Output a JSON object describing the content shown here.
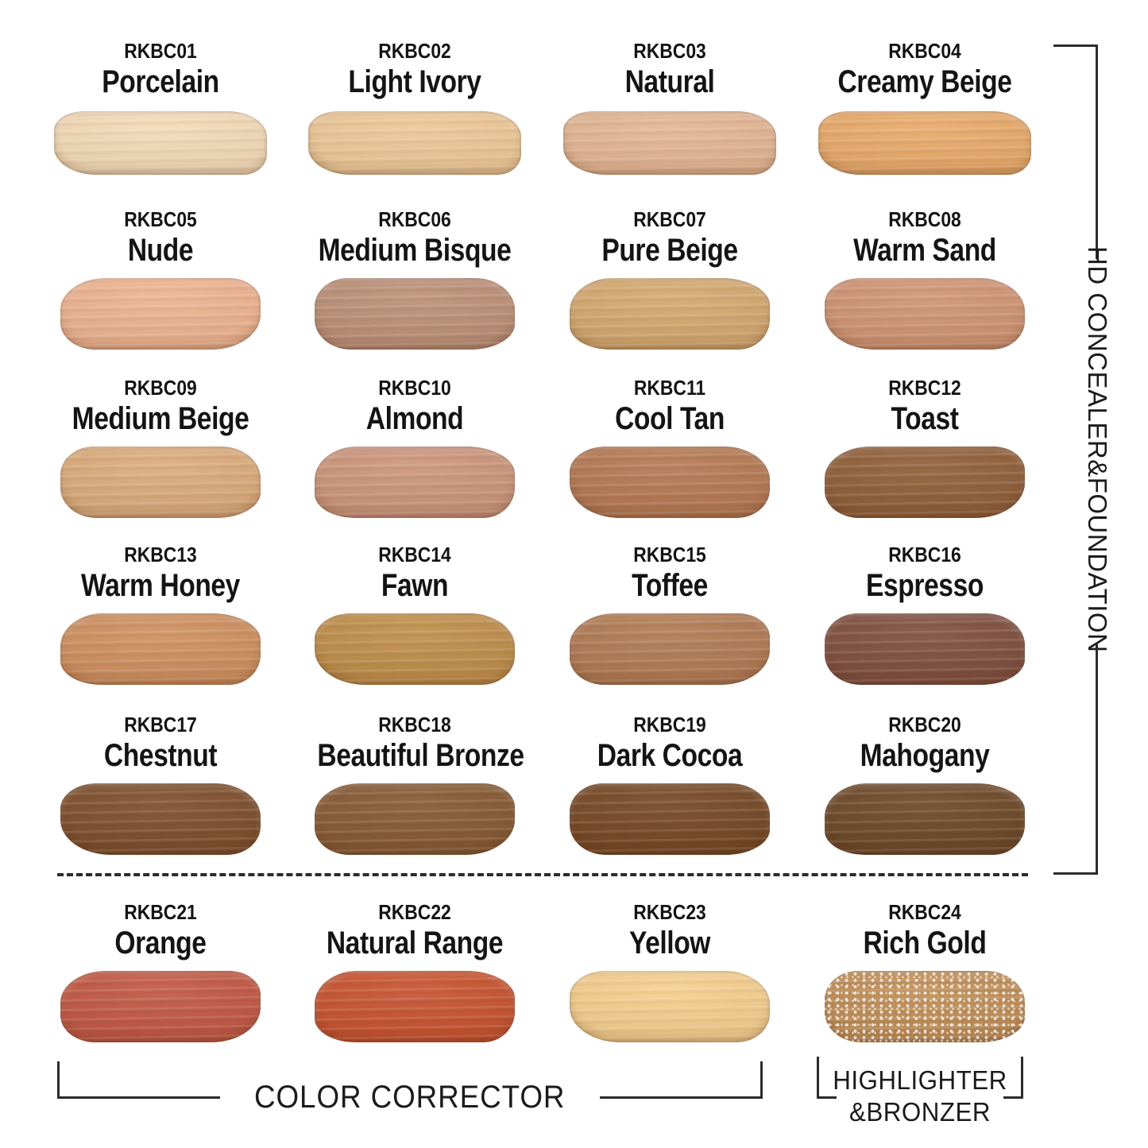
{
  "groups": {
    "right_bracket_label": "HD CONCEALER&FOUNDATION",
    "color_corrector_label": "COLOR CORRECTOR",
    "highlighter_line1": "HIGHLIGHTER",
    "highlighter_line2": "&BRONZER"
  },
  "line_color": "#2c2c2c",
  "swatches": [
    {
      "code": "RKBC01",
      "name": "Porcelain",
      "color": "#f4dab6"
    },
    {
      "code": "RKBC02",
      "name": "Light Ivory",
      "color": "#eec795"
    },
    {
      "code": "RKBC03",
      "name": "Natural",
      "color": "#e4b591"
    },
    {
      "code": "RKBC04",
      "name": "Creamy Beige",
      "color": "#e9a967"
    },
    {
      "code": "RKBC05",
      "name": "Nude",
      "color": "#eeb28e"
    },
    {
      "code": "RKBC06",
      "name": "Medium Bisque",
      "color": "#bb8e74"
    },
    {
      "code": "RKBC07",
      "name": "Pure Beige",
      "color": "#d4a76c"
    },
    {
      "code": "RKBC08",
      "name": "Warm Sand",
      "color": "#d09271"
    },
    {
      "code": "RKBC09",
      "name": "Medium Beige",
      "color": "#dcaa79"
    },
    {
      "code": "RKBC10",
      "name": "Almond",
      "color": "#cc9378"
    },
    {
      "code": "RKBC11",
      "name": "Cool Tan",
      "color": "#b4764f"
    },
    {
      "code": "RKBC12",
      "name": "Toast",
      "color": "#8f5c35"
    },
    {
      "code": "RKBC13",
      "name": "Warm Honey",
      "color": "#cf8e5c"
    },
    {
      "code": "RKBC14",
      "name": "Fawn",
      "color": "#bf8c46"
    },
    {
      "code": "RKBC15",
      "name": "Toffee",
      "color": "#b17850"
    },
    {
      "code": "RKBC16",
      "name": "Espresso",
      "color": "#7e4c3b"
    },
    {
      "code": "RKBC17",
      "name": "Chestnut",
      "color": "#7c4c28"
    },
    {
      "code": "RKBC18",
      "name": "Beautiful Bronze",
      "color": "#85572f"
    },
    {
      "code": "RKBC19",
      "name": "Dark Cocoa",
      "color": "#744520"
    },
    {
      "code": "RKBC20",
      "name": "Mahogany",
      "color": "#6b4524"
    },
    {
      "code": "RKBC21",
      "name": "Orange",
      "color": "#c25540"
    },
    {
      "code": "RKBC22",
      "name": "Natural Range",
      "color": "#c7502c"
    },
    {
      "code": "RKBC23",
      "name": "Yellow",
      "color": "#f5ce8c"
    },
    {
      "code": "RKBC24",
      "name": "Rich Gold",
      "color": "#be8b53"
    }
  ]
}
